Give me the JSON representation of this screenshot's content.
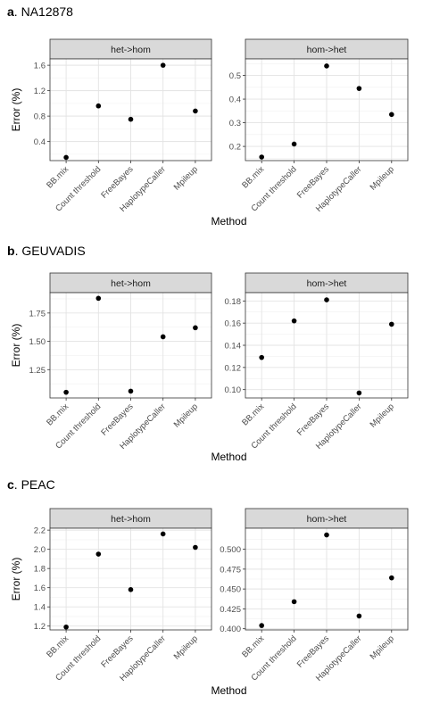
{
  "chart_data": [
    {
      "type": "scatter",
      "panel_label": "a",
      "title": "NA12878",
      "xlabel": "Method",
      "ylabel": "Error (%)",
      "categories": [
        "BB.mix",
        "Count threshold",
        "FreeBayes",
        "HaplotypeCaller",
        "Mpileup"
      ],
      "grid": true,
      "facets": [
        {
          "strip": "het->hom",
          "ylim": [
            0.1,
            1.7
          ],
          "yticks": [
            0.4,
            0.8,
            1.2,
            1.6
          ],
          "ytick_labels": [
            "0.4",
            "0.8",
            "1.2",
            "1.6"
          ],
          "values": [
            0.15,
            0.96,
            0.75,
            1.6,
            0.88
          ]
        },
        {
          "strip": "hom->het",
          "ylim": [
            0.14,
            0.57
          ],
          "yticks": [
            0.2,
            0.3,
            0.4,
            0.5
          ],
          "ytick_labels": [
            "0.2",
            "0.3",
            "0.4",
            "0.5"
          ],
          "values": [
            0.155,
            0.21,
            0.54,
            0.445,
            0.335
          ]
        }
      ]
    },
    {
      "type": "scatter",
      "panel_label": "b",
      "title": "GEUVADIS",
      "xlabel": "Method",
      "ylabel": "Error (%)",
      "categories": [
        "BB.mix",
        "Count threshold",
        "FreeBayes",
        "HaplotypeCaller",
        "Mpileup"
      ],
      "grid": true,
      "facets": [
        {
          "strip": "het->hom",
          "ylim": [
            1.0,
            1.93
          ],
          "yticks": [
            1.25,
            1.5,
            1.75
          ],
          "ytick_labels": [
            "1.25",
            "1.50",
            "1.75"
          ],
          "values": [
            1.05,
            1.88,
            1.06,
            1.54,
            1.62
          ]
        },
        {
          "strip": "hom->het",
          "ylim": [
            0.0925,
            0.1875
          ],
          "yticks": [
            0.1,
            0.12,
            0.14,
            0.16,
            0.18
          ],
          "ytick_labels": [
            "0.10",
            "0.12",
            "0.14",
            "0.16",
            "0.18"
          ],
          "values": [
            0.129,
            0.162,
            0.181,
            0.097,
            0.159
          ]
        }
      ]
    },
    {
      "type": "scatter",
      "panel_label": "c",
      "title": "PEAC",
      "xlabel": "Method",
      "ylabel": "Error (%)",
      "categories": [
        "BB.mix",
        "Count threshold",
        "FreeBayes",
        "HaplotypeCaller",
        "Mpileup"
      ],
      "grid": true,
      "facets": [
        {
          "strip": "het->hom",
          "ylim": [
            1.16,
            2.22
          ],
          "yticks": [
            1.2,
            1.4,
            1.6,
            1.8,
            2.0,
            2.2
          ],
          "ytick_labels": [
            "1.2",
            "1.4",
            "1.6",
            "1.8",
            "2.0",
            "2.2"
          ],
          "values": [
            1.19,
            1.95,
            1.58,
            2.16,
            2.02
          ]
        },
        {
          "strip": "hom->het",
          "ylim": [
            0.3985,
            0.5265
          ],
          "yticks": [
            0.4,
            0.425,
            0.45,
            0.475,
            0.5
          ],
          "ytick_labels": [
            "0.400",
            "0.425",
            "0.450",
            "0.475",
            "0.500"
          ],
          "values": [
            0.404,
            0.434,
            0.518,
            0.416,
            0.464
          ]
        }
      ]
    }
  ]
}
